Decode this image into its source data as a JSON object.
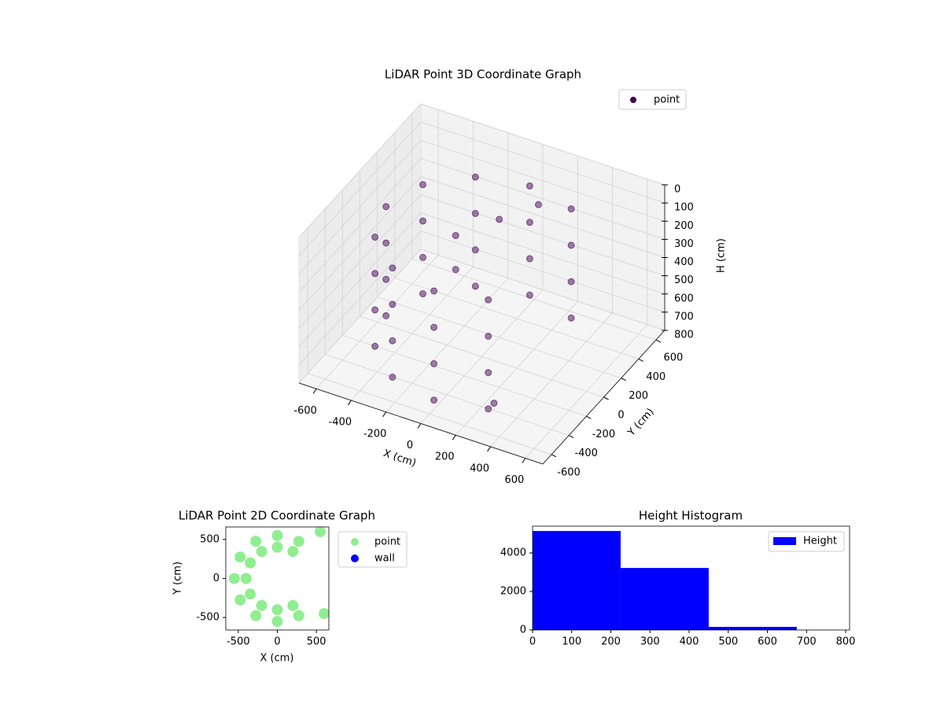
{
  "chart_data": [
    {
      "type": "scatter3d",
      "title": "LiDAR Point 3D Coordinate Graph",
      "x_label": "X (cm)",
      "y_label": "Y (cm)",
      "z_label": "H (cm)",
      "xlim": [
        -700,
        700
      ],
      "xticks": [
        -600,
        -400,
        -200,
        0,
        200,
        400,
        600
      ],
      "ylim": [
        -700,
        700
      ],
      "yticks": [
        -600,
        -400,
        -200,
        0,
        200,
        400,
        600
      ],
      "zlim": [
        0,
        800
      ],
      "zticks": [
        0,
        100,
        200,
        300,
        400,
        500,
        600,
        700,
        800
      ],
      "z_inverted": true,
      "grid": true,
      "legend": "upper right",
      "series": [
        {
          "name": "point",
          "color": "#440154",
          "x": [
            275,
            0,
            -275,
            -476,
            -550,
            -476,
            -275,
            0,
            275,
            275,
            0,
            -275,
            -476,
            -550,
            -476,
            -275,
            0,
            275,
            275,
            0,
            -275,
            -476,
            -550,
            -476,
            -275,
            0,
            275,
            275,
            0,
            -275,
            -476,
            -550,
            -476,
            -275,
            0,
            275,
            -200,
            0,
            -100,
            150,
            350
          ],
          "y": [
            476,
            550,
            476,
            275,
            0,
            -275,
            -476,
            -550,
            -476,
            476,
            550,
            476,
            275,
            0,
            -275,
            -476,
            -550,
            -476,
            476,
            550,
            476,
            275,
            0,
            -275,
            -476,
            -550,
            -476,
            476,
            550,
            476,
            275,
            0,
            -275,
            -476,
            -550,
            -476,
            100,
            200,
            -100,
            350,
            -560
          ],
          "z": [
            150,
            150,
            150,
            150,
            150,
            150,
            150,
            150,
            150,
            350,
            350,
            350,
            350,
            350,
            350,
            350,
            350,
            350,
            550,
            550,
            550,
            550,
            550,
            550,
            550,
            550,
            550,
            750,
            750,
            750,
            750,
            750,
            750,
            750,
            750,
            750,
            250,
            150,
            300,
            100,
            650
          ]
        }
      ]
    },
    {
      "type": "scatter",
      "title": "LiDAR Point 2D Coordinate Graph",
      "x_label": "X (cm)",
      "y_label": "Y (cm)",
      "xlim": [
        -660,
        660
      ],
      "xticks": [
        -500,
        0,
        500
      ],
      "ylim": [
        -660,
        660
      ],
      "yticks": [
        -500,
        0,
        500
      ],
      "legend": "outside right",
      "series": [
        {
          "name": "point",
          "color": "#90ee90",
          "x": [
            275,
            0,
            -275,
            -476,
            -550,
            -476,
            -275,
            0,
            275,
            200,
            0,
            -200,
            -346,
            -400,
            -346,
            -200,
            0,
            200,
            600,
            550
          ],
          "y": [
            476,
            550,
            476,
            275,
            0,
            -275,
            -476,
            -550,
            -476,
            346,
            400,
            346,
            200,
            0,
            -200,
            -346,
            -400,
            -346,
            -450,
            600
          ]
        },
        {
          "name": "wall",
          "color": "#0000ff",
          "x": [],
          "y": []
        }
      ]
    },
    {
      "type": "histogram",
      "title": "Height Histogram",
      "name": "Height",
      "color": "#0000ff",
      "bins": [
        0,
        225,
        450,
        675
      ],
      "counts": [
        5140,
        3220,
        160
      ],
      "xlim": [
        0,
        810
      ],
      "xticks": [
        0,
        100,
        200,
        300,
        400,
        500,
        600,
        700,
        800
      ],
      "ylim": [
        0,
        5390
      ],
      "yticks": [
        0,
        2000,
        4000
      ],
      "legend": "upper right"
    }
  ]
}
